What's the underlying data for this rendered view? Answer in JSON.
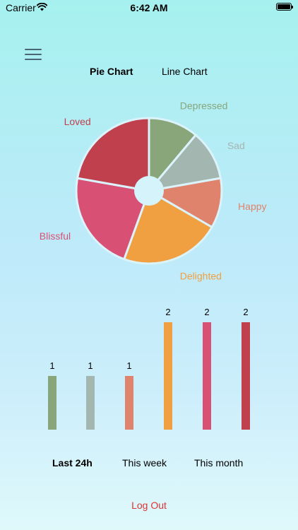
{
  "status_bar": {
    "carrier": "Carrier",
    "time": "6:42 AM"
  },
  "chart_tabs": [
    {
      "label": "Pie Chart",
      "active": true
    },
    {
      "label": "Line Chart",
      "active": false
    }
  ],
  "chart_data": [
    {
      "type": "pie",
      "title": "",
      "categories": [
        "Depressed",
        "Sad",
        "Happy",
        "Delighted",
        "Blissful",
        "Loved"
      ],
      "values": [
        1,
        1,
        1,
        2,
        2,
        2
      ],
      "colors": [
        "#89a57a",
        "#a3b6b0",
        "#e0836c",
        "#f0a040",
        "#d95075",
        "#c0404e"
      ],
      "donut_hole": true
    },
    {
      "type": "bar",
      "title": "",
      "categories": [
        "Depressed",
        "Sad",
        "Happy",
        "Delighted",
        "Blissful",
        "Loved"
      ],
      "values": [
        1,
        1,
        1,
        2,
        2,
        2
      ],
      "colors": [
        "#89a57a",
        "#a3b6b0",
        "#e0836c",
        "#f0a040",
        "#d95075",
        "#c0404e"
      ],
      "ylim": [
        0,
        2
      ],
      "xlabel": "",
      "ylabel": "",
      "data_labels": [
        "1",
        "1",
        "1",
        "2",
        "2",
        "2"
      ],
      "grid": false
    }
  ],
  "period_tabs": [
    {
      "label": "Last 24h",
      "active": true
    },
    {
      "label": "This week",
      "active": false
    },
    {
      "label": "This month",
      "active": false
    }
  ],
  "logout_label": "Log Out",
  "logout_color": "#e03232",
  "icons": {
    "menu": "hamburger-menu-icon",
    "wifi": "wifi-icon",
    "battery": "battery-icon"
  }
}
